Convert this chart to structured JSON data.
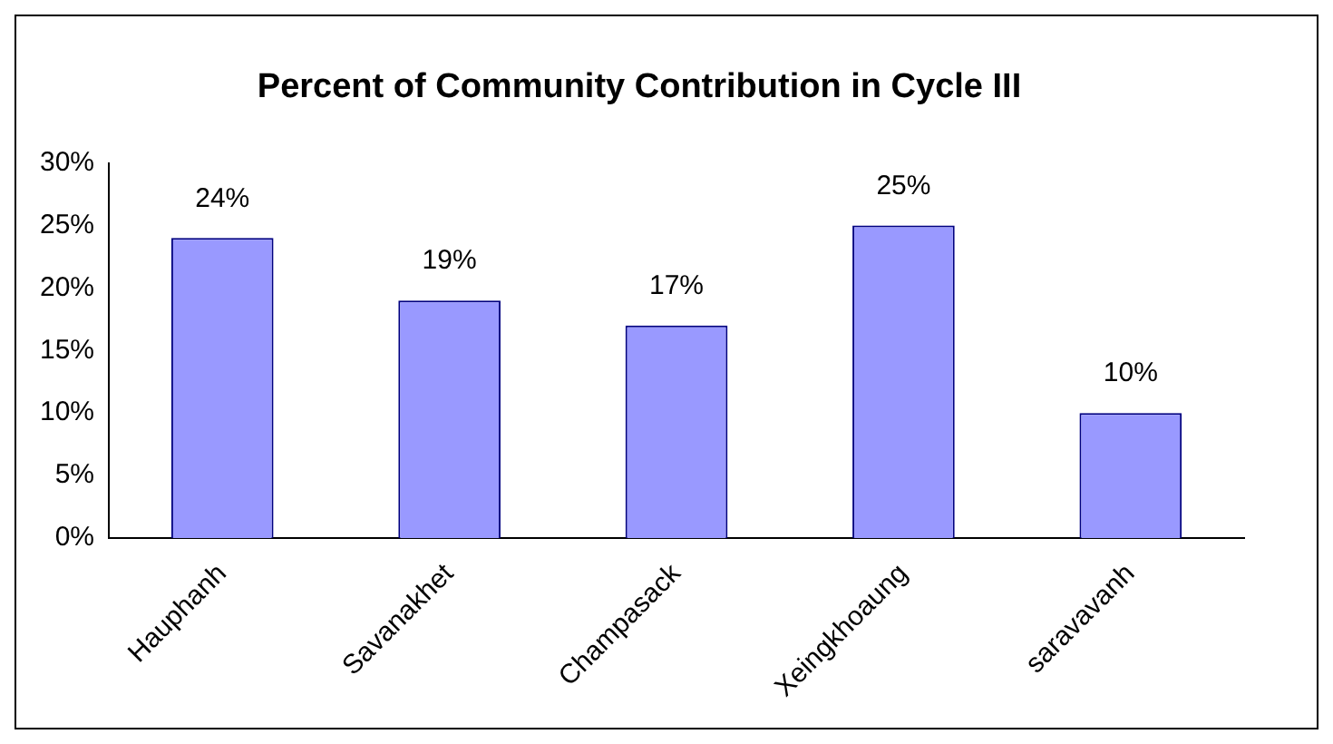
{
  "chart_data": {
    "type": "bar",
    "title": "Percent of Community Contribution in Cycle III",
    "categories": [
      "Hauphanh",
      "Savanakhet",
      "Champasack",
      "Xeingkhoaung",
      "saravavanh"
    ],
    "values": [
      24,
      19,
      17,
      25,
      10
    ],
    "color": "#9999ff",
    "value_labels": [
      "24%",
      "19%",
      "17%",
      "25%",
      "10%"
    ],
    "ylim": [
      0,
      30
    ],
    "yticks": [
      {
        "value": 0,
        "label": "0%"
      },
      {
        "value": 5,
        "label": "5%"
      },
      {
        "value": 10,
        "label": "10%"
      },
      {
        "value": 15,
        "label": "15%"
      },
      {
        "value": 20,
        "label": "20%"
      },
      {
        "value": 25,
        "label": "25%"
      },
      {
        "value": 30,
        "label": "30%"
      }
    ],
    "grid": false,
    "legend": false
  }
}
